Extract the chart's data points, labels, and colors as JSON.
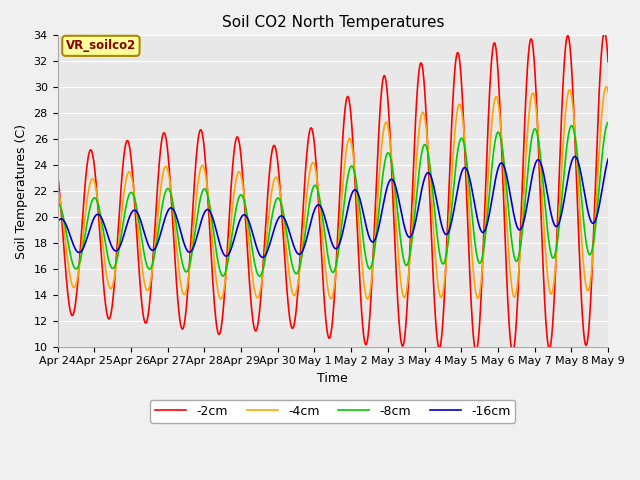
{
  "title": "Soil CO2 North Temperatures",
  "xlabel": "Time",
  "ylabel": "Soil Temperatures (C)",
  "ylim": [
    10,
    34
  ],
  "yticks": [
    10,
    12,
    14,
    16,
    18,
    20,
    22,
    24,
    26,
    28,
    30,
    32,
    34
  ],
  "xtick_labels": [
    "Apr 24",
    "Apr 25",
    "Apr 26",
    "Apr 27",
    "Apr 28",
    "Apr 29",
    "Apr 30",
    "May 1",
    "May 2",
    "May 3",
    "May 4",
    "May 5",
    "May 6",
    "May 7",
    "May 8",
    "May 9"
  ],
  "series": [
    {
      "label": "-2cm",
      "color": "#ff0000",
      "lw": 1.2
    },
    {
      "label": "-4cm",
      "color": "#ffa500",
      "lw": 1.2
    },
    {
      "label": "-8cm",
      "color": "#00cc00",
      "lw": 1.2
    },
    {
      "label": "-16cm",
      "color": "#0000cc",
      "lw": 1.2
    }
  ],
  "annotation_text": "VR_soilco2",
  "annotation_bg": "#ffff99",
  "annotation_border": "#aa8800",
  "plot_bg": "#e8e8e8",
  "fig_bg": "#f0f0f0",
  "title_fontsize": 11,
  "axis_label_fontsize": 9,
  "tick_fontsize": 8,
  "legend_fontsize": 9
}
